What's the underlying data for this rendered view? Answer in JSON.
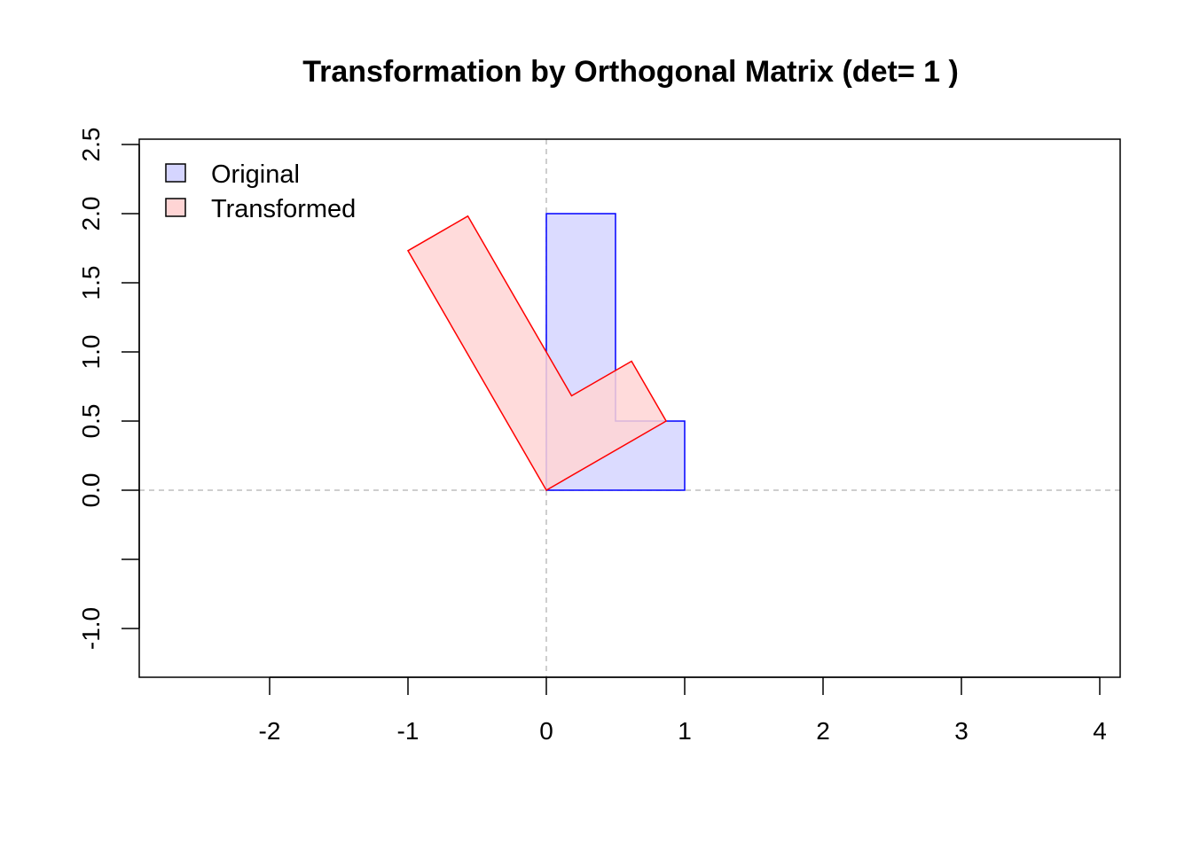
{
  "chart_data": {
    "type": "polygon",
    "title": "Transformation by Orthogonal Matrix (det= 1 )",
    "xlabel": "",
    "ylabel": "",
    "xlim": [
      -2.94,
      4.15
    ],
    "ylim": [
      -1.35,
      2.55
    ],
    "x_ticks": [
      -2,
      -1,
      0,
      1,
      2,
      3,
      4
    ],
    "x_tick_labels": [
      "-2",
      "-1",
      "0",
      "1",
      "2",
      "3",
      "4"
    ],
    "y_ticks": [
      -1.0,
      -0.5,
      0.0,
      0.5,
      1.0,
      1.5,
      2.0,
      2.5
    ],
    "y_tick_labels": [
      "-1.0",
      "",
      "0.0",
      "0.5",
      "1.0",
      "1.5",
      "2.0",
      "2.5"
    ],
    "reference_lines": {
      "x": 0,
      "y": 0,
      "color": "#bebebe",
      "style": "dashed"
    },
    "grid": false,
    "legend_position": "top-left",
    "series": [
      {
        "name": "Original",
        "fill": "#d5d5ff",
        "stroke": "#0000ff",
        "points": [
          [
            0,
            0
          ],
          [
            1,
            0
          ],
          [
            1,
            0.5
          ],
          [
            0.5,
            0.5
          ],
          [
            0.5,
            2
          ],
          [
            0,
            2
          ]
        ]
      },
      {
        "name": "Transformed",
        "fill": "#ffd5d5",
        "stroke": "#ff0000",
        "points": [
          [
            0,
            0
          ],
          [
            0.866,
            0.5
          ],
          [
            0.616,
            0.933
          ],
          [
            0.183,
            0.683
          ],
          [
            -0.567,
            1.982
          ],
          [
            -1.0,
            1.732
          ]
        ]
      }
    ]
  }
}
